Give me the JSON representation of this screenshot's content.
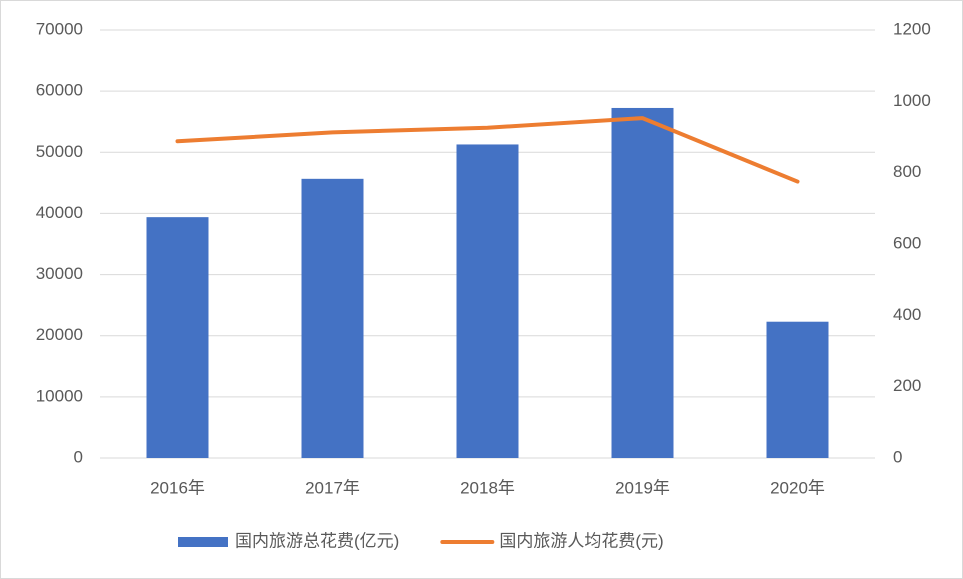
{
  "chart_data": {
    "type": "bar",
    "categories": [
      "2016年",
      "2017年",
      "2018年",
      "2019年",
      "2020年"
    ],
    "series": [
      {
        "name": "国内旅游总花费(亿元)",
        "type": "bar",
        "color": "#4472c4",
        "values": [
          39390,
          45660,
          51280,
          57250,
          22290
        ]
      },
      {
        "name": "国内旅游人均花费(元)",
        "type": "line",
        "axis": "y2",
        "color": "#ed7d31",
        "values": [
          888,
          913,
          926,
          953,
          775
        ]
      }
    ],
    "ylim": [
      0,
      70000
    ],
    "yticks": [
      0,
      10000,
      20000,
      30000,
      40000,
      50000,
      60000,
      70000
    ],
    "y2lim": [
      0,
      1200
    ],
    "y2ticks": [
      0,
      200,
      400,
      600,
      800,
      1000,
      1200
    ],
    "grid": true,
    "legend": "bottom"
  }
}
